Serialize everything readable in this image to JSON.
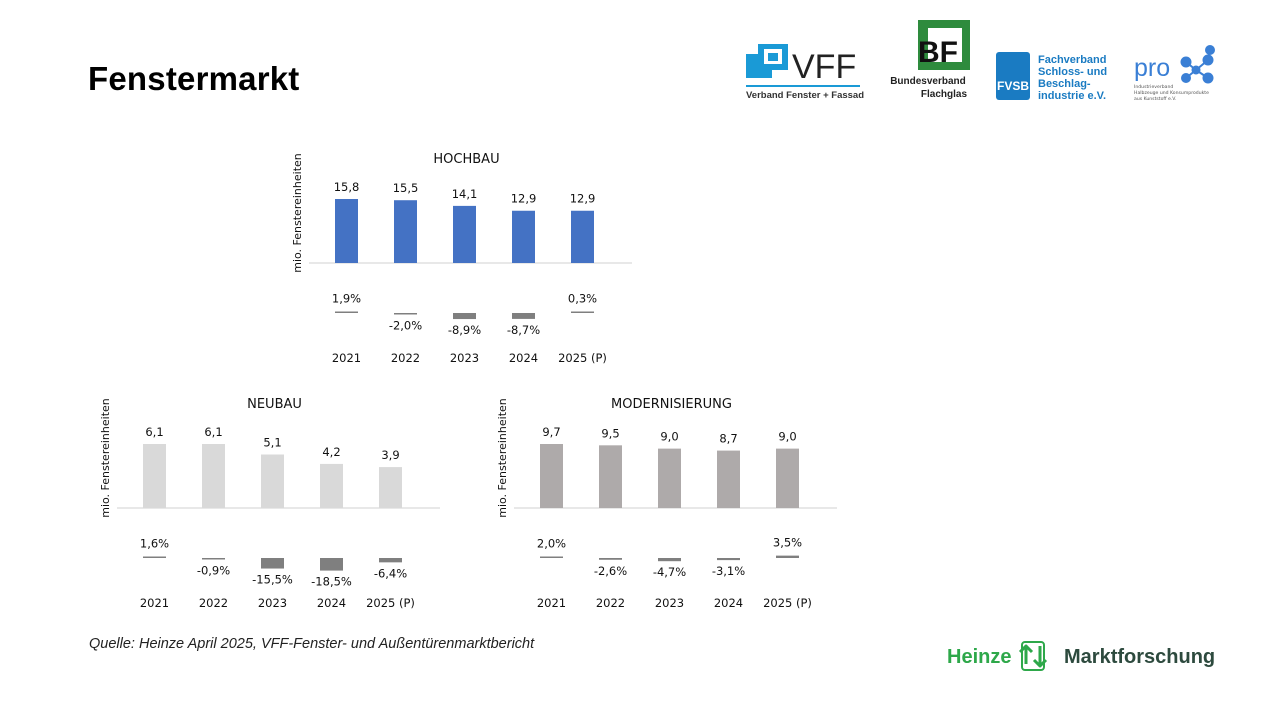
{
  "page": {
    "title": "Fenstermarkt",
    "source": "Quelle: Heinze April 2025, VFF-Fenster- und Außentürenmarktbericht"
  },
  "logos": {
    "vff_name": "VFF",
    "vff_sub": "Verband Fenster + Fassade",
    "bf_mark": "BF",
    "bf_line1": "Bundesverband",
    "bf_line2": "Flachglas",
    "fvsb_mark": "FVSB",
    "fvsb_line1": "Fachverband",
    "fvsb_line2": "Schloss- und",
    "fvsb_line3": "Beschlag-",
    "fvsb_line4": "industrie e.V.",
    "pro_mark": "pro",
    "pro_sub1": "Industrieverband",
    "pro_sub2": "Halbzeuge und Konsumprodukte",
    "pro_sub3": "aus Kunststoff e.V.",
    "heinze_left": "Heinze",
    "heinze_right": "Marktforschung"
  },
  "colors": {
    "hochbau_bar": "#4472C4",
    "neubau_bar": "#D9D9D9",
    "modern_bar": "#AEAAAA",
    "change_bar": "#7F7F7F",
    "heinze_green": "#2EA84A",
    "heinze_dark": "#2D4A3E",
    "vff_blue": "#1A9AD6",
    "bf_green": "#2E8B3D",
    "fvsb_blue": "#1A7BC2",
    "pro_blue": "#3A7FD5"
  },
  "chart_data": [
    {
      "id": "hochbau",
      "type": "bar",
      "title": "HOCHBAU",
      "ylabel": "mio. Fenstereinheiten",
      "categories": [
        "2021",
        "2022",
        "2023",
        "2024",
        "2025 (P)"
      ],
      "values": [
        15.8,
        15.5,
        14.1,
        12.9,
        12.9
      ],
      "value_labels": [
        "15,8",
        "15,5",
        "14,1",
        "12,9",
        "12,9"
      ],
      "changes": [
        1.9,
        -2.0,
        -8.9,
        -8.7,
        0.3
      ],
      "change_labels": [
        "1,9%",
        "-2,0%",
        "-8,9%",
        "-8,7%",
        "0,3%"
      ]
    },
    {
      "id": "neubau",
      "type": "bar",
      "title": "NEUBAU",
      "ylabel": "mio. Fenstereinheiten",
      "categories": [
        "2021",
        "2022",
        "2023",
        "2024",
        "2025 (P)"
      ],
      "values": [
        6.1,
        6.1,
        5.1,
        4.2,
        3.9
      ],
      "value_labels": [
        "6,1",
        "6,1",
        "5,1",
        "4,2",
        "3,9"
      ],
      "changes": [
        1.6,
        -0.9,
        -15.5,
        -18.5,
        -6.4
      ],
      "change_labels": [
        "1,6%",
        "-0,9%",
        "-15,5%",
        "-18,5%",
        "-6,4%"
      ]
    },
    {
      "id": "modernisierung",
      "type": "bar",
      "title": "MODERNISIERUNG",
      "ylabel": "mio. Fenstereinheiten",
      "categories": [
        "2021",
        "2022",
        "2023",
        "2024",
        "2025 (P)"
      ],
      "values": [
        9.7,
        9.5,
        9.0,
        8.7,
        9.0
      ],
      "value_labels": [
        "9,7",
        "9,5",
        "9,0",
        "8,7",
        "9,0"
      ],
      "changes": [
        2.0,
        -2.6,
        -4.7,
        -3.1,
        3.5
      ],
      "change_labels": [
        "2,0%",
        "-2,6%",
        "-4,7%",
        "-3,1%",
        "3,5%"
      ]
    }
  ]
}
